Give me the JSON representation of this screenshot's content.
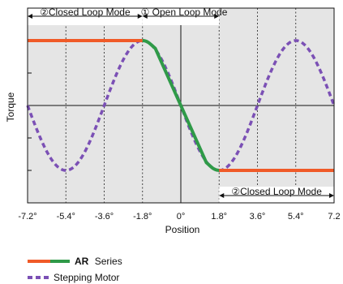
{
  "chart_data": {
    "type": "line",
    "xlabel": "Position",
    "ylabel": "Torque",
    "x_unit": "°",
    "xlim": [
      -7.2,
      7.2
    ],
    "ylim": [
      -1.5,
      1.5
    ],
    "x_ticks": [
      -7.2,
      -5.4,
      -3.6,
      -1.8,
      0,
      1.8,
      3.6,
      5.4,
      7.2
    ],
    "x_tick_labels": [
      "-7.2°",
      "-5.4°",
      "-3.6°",
      "-1.8°",
      "0°",
      "1.8°",
      "3.6°",
      "5.4°",
      "7.2"
    ],
    "grid": true,
    "annotations": {
      "closed_loop_left": "②Closed Loop Mode",
      "open_loop": "① Open Loop Mode",
      "closed_loop_right": "②Closed Loop Mode"
    },
    "series": [
      {
        "name": "Series",
        "name_prefix": "AR",
        "color_main": "#f05a28",
        "color_secondary": "#2f9a48",
        "segments": [
          {
            "mode": "closed",
            "color": "#f05a28",
            "x": [
              -7.2,
              -1.8
            ],
            "y": [
              1,
              1
            ]
          },
          {
            "mode": "open",
            "color": "#2f9a48",
            "x": [
              -1.8,
              -1.2,
              0,
              1.2,
              1.8
            ],
            "y": [
              1,
              0.88,
              0,
              -0.88,
              -1
            ]
          },
          {
            "mode": "closed",
            "color": "#f05a28",
            "x": [
              1.8,
              7.2
            ],
            "y": [
              -1,
              -1
            ]
          }
        ]
      },
      {
        "name": "Stepping Motor",
        "color": "#7b50b5",
        "style": "dashed",
        "function": "-sin(2*pi*x/7.2)",
        "x": [
          -7.2,
          -5.4,
          -3.6,
          -1.8,
          0,
          1.8,
          3.6,
          5.4,
          7.2
        ],
        "y": [
          0,
          -1,
          0,
          1,
          0,
          -1,
          0,
          1,
          0
        ]
      }
    ]
  }
}
